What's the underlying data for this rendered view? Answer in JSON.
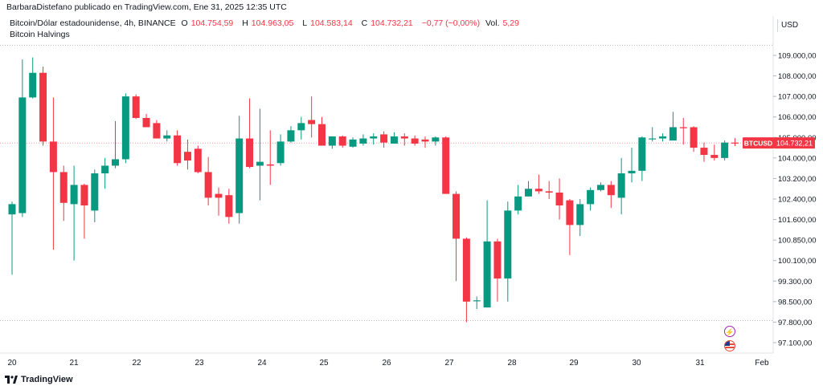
{
  "header": {
    "publisher": "BarbaraDistefano publicado en TradingView.com, Ene 31, 2025 12:35 UTC",
    "symbol_desc": "Bitcoin/Dólar estadounidense, 4h, BINANCE",
    "o_label": "O",
    "o_value": "104.754,59",
    "h_label": "H",
    "h_value": "104.963,05",
    "l_label": "L",
    "l_value": "104.583,14",
    "c_label": "C",
    "c_value": "104.732,21",
    "change": "−0,77 (−0,00%)",
    "vol_label": "Vol.",
    "vol_value": "5,29",
    "indicator": "Bitcoin Halvings",
    "currency": "USD"
  },
  "price_badge": {
    "ticker": "BTCUSD",
    "price": "104.732,21"
  },
  "footer": {
    "brand": "TradingView"
  },
  "colors": {
    "up": "#089981",
    "down": "#f23645",
    "grid": "#f0f3fa",
    "axis_text": "#131722"
  },
  "icons": [
    "tradingview-logo-icon",
    "flash-event-icon",
    "us-flag-event-icon"
  ],
  "chart_data": {
    "type": "candlestick",
    "timeframe": "4h",
    "x_ticks": [
      "20",
      "21",
      "22",
      "23",
      "24",
      "25",
      "26",
      "27",
      "28",
      "29",
      "30",
      "31",
      "Feb"
    ],
    "y_ticks": [
      "109.000,00",
      "108.000,00",
      "107.000,00",
      "106.000,00",
      "105.000,00",
      "104.000,00",
      "103.200,00",
      "102.400,00",
      "101.600,00",
      "100.850,00",
      "100.100,00",
      "99.300,00",
      "98.500,00",
      "97.800,00",
      "97.100,00"
    ],
    "y_tick_values": [
      109000,
      108000,
      107000,
      106000,
      105000,
      104000,
      103200,
      102400,
      101600,
      100850,
      100100,
      99300,
      98500,
      97800,
      97100
    ],
    "candles": [
      {
        "o": 101800,
        "h": 102300,
        "l": 99550,
        "c": 102200
      },
      {
        "o": 101850,
        "h": 108800,
        "l": 101700,
        "c": 106950
      },
      {
        "o": 106950,
        "h": 108900,
        "l": 106900,
        "c": 108150
      },
      {
        "o": 108150,
        "h": 108450,
        "l": 104600,
        "c": 104800
      },
      {
        "o": 104800,
        "h": 106950,
        "l": 100500,
        "c": 103450
      },
      {
        "o": 103450,
        "h": 103700,
        "l": 101550,
        "c": 102250
      },
      {
        "o": 102200,
        "h": 103700,
        "l": 100100,
        "c": 102950
      },
      {
        "o": 102950,
        "h": 103000,
        "l": 100900,
        "c": 102150
      },
      {
        "o": 101950,
        "h": 103550,
        "l": 101500,
        "c": 103400
      },
      {
        "o": 103400,
        "h": 104000,
        "l": 102800,
        "c": 103700
      },
      {
        "o": 103700,
        "h": 105800,
        "l": 103600,
        "c": 103950
      },
      {
        "o": 103950,
        "h": 107150,
        "l": 103800,
        "c": 107000
      },
      {
        "o": 107000,
        "h": 107100,
        "l": 105900,
        "c": 105950
      },
      {
        "o": 105950,
        "h": 106150,
        "l": 105500,
        "c": 105500
      },
      {
        "o": 105700,
        "h": 105850,
        "l": 104950,
        "c": 104950
      },
      {
        "o": 104950,
        "h": 105350,
        "l": 104800,
        "c": 105100
      },
      {
        "o": 105100,
        "h": 105350,
        "l": 103700,
        "c": 103800
      },
      {
        "o": 104300,
        "h": 104900,
        "l": 103550,
        "c": 103900
      },
      {
        "o": 104450,
        "h": 104600,
        "l": 103400,
        "c": 103450
      },
      {
        "o": 103450,
        "h": 104050,
        "l": 102150,
        "c": 102450
      },
      {
        "o": 102600,
        "h": 102850,
        "l": 101750,
        "c": 102450
      },
      {
        "o": 102550,
        "h": 102800,
        "l": 101450,
        "c": 101700
      },
      {
        "o": 101850,
        "h": 106050,
        "l": 101450,
        "c": 104950
      },
      {
        "o": 104950,
        "h": 106900,
        "l": 103600,
        "c": 103650
      },
      {
        "o": 103700,
        "h": 106400,
        "l": 102350,
        "c": 103850
      },
      {
        "o": 103750,
        "h": 105350,
        "l": 102950,
        "c": 103700
      },
      {
        "o": 103800,
        "h": 105150,
        "l": 103700,
        "c": 104800
      },
      {
        "o": 104800,
        "h": 105550,
        "l": 104750,
        "c": 105350
      },
      {
        "o": 105350,
        "h": 106000,
        "l": 104900,
        "c": 105700
      },
      {
        "o": 105850,
        "h": 107000,
        "l": 105000,
        "c": 105650
      },
      {
        "o": 105650,
        "h": 106000,
        "l": 104600,
        "c": 104600
      },
      {
        "o": 104600,
        "h": 105050,
        "l": 104450,
        "c": 105050
      },
      {
        "o": 105050,
        "h": 105100,
        "l": 104500,
        "c": 104600
      },
      {
        "o": 104550,
        "h": 105000,
        "l": 104500,
        "c": 104900
      },
      {
        "o": 104700,
        "h": 105150,
        "l": 104600,
        "c": 104950
      },
      {
        "o": 104950,
        "h": 105200,
        "l": 104650,
        "c": 105050
      },
      {
        "o": 105150,
        "h": 105300,
        "l": 104500,
        "c": 104750
      },
      {
        "o": 104700,
        "h": 105250,
        "l": 104700,
        "c": 105050
      },
      {
        "o": 105050,
        "h": 105200,
        "l": 104600,
        "c": 104950
      },
      {
        "o": 104950,
        "h": 105100,
        "l": 104600,
        "c": 104700
      },
      {
        "o": 104900,
        "h": 105050,
        "l": 104500,
        "c": 104800
      },
      {
        "o": 104800,
        "h": 105050,
        "l": 104600,
        "c": 105000
      },
      {
        "o": 105000,
        "h": 105050,
        "l": 102600,
        "c": 102600
      },
      {
        "o": 102600,
        "h": 102700,
        "l": 99300,
        "c": 100900
      },
      {
        "o": 100900,
        "h": 100950,
        "l": 97800,
        "c": 98500
      },
      {
        "o": 98550,
        "h": 98700,
        "l": 98250,
        "c": 98550
      },
      {
        "o": 98300,
        "h": 102350,
        "l": 98300,
        "c": 100800
      },
      {
        "o": 100800,
        "h": 100900,
        "l": 98500,
        "c": 99400
      },
      {
        "o": 99400,
        "h": 102300,
        "l": 98500,
        "c": 101950
      },
      {
        "o": 101950,
        "h": 102950,
        "l": 101800,
        "c": 102500
      },
      {
        "o": 102500,
        "h": 103100,
        "l": 102500,
        "c": 102800
      },
      {
        "o": 102800,
        "h": 103350,
        "l": 102600,
        "c": 102700
      },
      {
        "o": 102700,
        "h": 103100,
        "l": 102400,
        "c": 102650
      },
      {
        "o": 102650,
        "h": 103200,
        "l": 101600,
        "c": 102150
      },
      {
        "o": 102350,
        "h": 102400,
        "l": 100300,
        "c": 101400
      },
      {
        "o": 101400,
        "h": 102400,
        "l": 101000,
        "c": 102200
      },
      {
        "o": 102200,
        "h": 102850,
        "l": 101950,
        "c": 102750
      },
      {
        "o": 102750,
        "h": 103050,
        "l": 102700,
        "c": 102950
      },
      {
        "o": 102950,
        "h": 103100,
        "l": 102050,
        "c": 102550
      },
      {
        "o": 102450,
        "h": 104000,
        "l": 101800,
        "c": 103400
      },
      {
        "o": 103400,
        "h": 104500,
        "l": 103050,
        "c": 103500
      },
      {
        "o": 103500,
        "h": 105050,
        "l": 103100,
        "c": 105000
      },
      {
        "o": 104950,
        "h": 105500,
        "l": 104800,
        "c": 104950
      },
      {
        "o": 104950,
        "h": 105200,
        "l": 104800,
        "c": 105050
      },
      {
        "o": 104850,
        "h": 106250,
        "l": 104900,
        "c": 105500
      },
      {
        "o": 105500,
        "h": 105950,
        "l": 104650,
        "c": 105450
      },
      {
        "o": 105500,
        "h": 105550,
        "l": 104300,
        "c": 104500
      },
      {
        "o": 104500,
        "h": 104750,
        "l": 103850,
        "c": 104150
      },
      {
        "o": 104150,
        "h": 104650,
        "l": 103900,
        "c": 104000
      },
      {
        "o": 104000,
        "h": 104850,
        "l": 103900,
        "c": 104750
      },
      {
        "o": 104750,
        "h": 104960,
        "l": 104580,
        "c": 104730
      }
    ],
    "last_price": 104732.21,
    "resistance_lines": [
      109500,
      97850
    ],
    "grid": false,
    "legend_position": "top-left"
  }
}
